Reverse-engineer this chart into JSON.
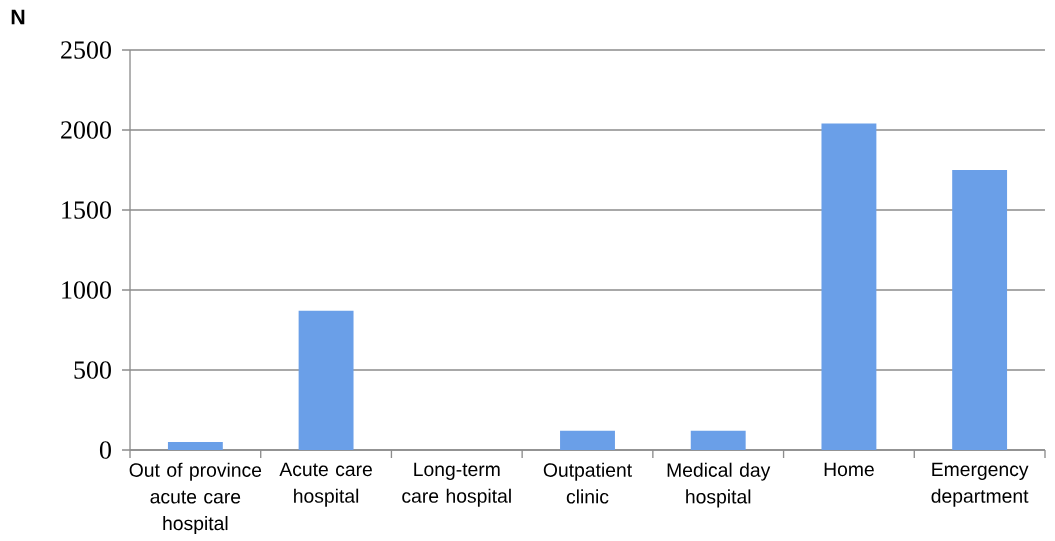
{
  "chart_data": {
    "type": "bar",
    "ylabel": "N",
    "categories": [
      "Out of province acute care hospital",
      "Acute care hospital",
      "Long-term care hospital",
      "Outpatient clinic",
      "Medical day hospital",
      "Home",
      "Emergency department"
    ],
    "values": [
      50,
      870,
      0,
      120,
      120,
      2040,
      1750
    ],
    "color": "#6a9fe8",
    "ylim": [
      0,
      2500
    ],
    "yticks": [
      0,
      500,
      1000,
      1500,
      2000,
      2500
    ],
    "grid": "y"
  }
}
